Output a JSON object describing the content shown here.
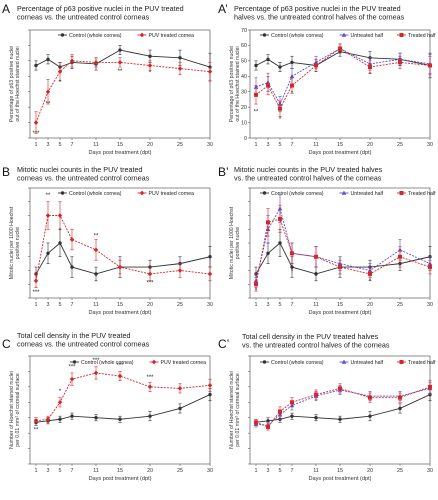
{
  "chart_data": [
    {
      "id": "A",
      "type": "line",
      "panel_label": "A",
      "title": [
        "Percentage of p63 positive nuclei in the PUV treated",
        "corneas vs. the untreated control corneas"
      ],
      "xlabel": "Days post treatment (dpt)",
      "ylabel": [
        "Percentage of p63 positive nuclei",
        "out of the Hoechst stained nuclei"
      ],
      "xlim": [
        0,
        30
      ],
      "ylim": [
        0,
        70
      ],
      "xticks": [
        1,
        3,
        5,
        7,
        11,
        15,
        20,
        25,
        30
      ],
      "xtick_labels": [
        "1",
        "3",
        "5",
        "7",
        "11",
        "15",
        "20",
        "25",
        "30"
      ],
      "yticks": [
        0,
        10,
        20,
        30,
        40,
        50,
        60,
        70
      ],
      "ytick_labels": [
        "",
        "",
        "",
        "",
        "",
        "",
        "",
        ""
      ],
      "legend": "top",
      "series": [
        {
          "name": "Control (whole cornea)",
          "color": "#333333",
          "marker": "circle",
          "x": [
            1,
            3,
            5,
            7,
            11,
            15,
            20,
            25,
            30
          ],
          "y": [
            47,
            51,
            46,
            49,
            48,
            57,
            53,
            52,
            46
          ],
          "err": [
            3,
            3,
            3,
            4,
            4,
            3,
            4,
            5,
            9
          ]
        },
        {
          "name": "PUV treated cornea",
          "color": "#d62728",
          "marker": "diamond",
          "x": [
            1,
            3,
            5,
            7,
            11,
            15,
            20,
            25,
            30
          ],
          "y": [
            10,
            30,
            43,
            50,
            49,
            49,
            47,
            45,
            43
          ],
          "err": [
            7,
            8,
            6,
            4,
            3,
            3,
            3,
            4,
            6
          ]
        }
      ],
      "annotations": [
        {
          "text": "***",
          "x": 1,
          "y": 2
        },
        {
          "text": "**",
          "x": 3,
          "y": 21
        },
        {
          "text": "*",
          "x": 5,
          "y": 35
        },
        {
          "text": "**",
          "x": 15,
          "y": 42
        },
        {
          "text": "*",
          "x": 20,
          "y": 41
        }
      ]
    },
    {
      "id": "A2",
      "type": "line",
      "panel_label": "A’",
      "title": [
        "Percentage of p63 positive nuclei in the PUV treated",
        "halves vs. the untreated control halves of the corneas"
      ],
      "xlabel": "Days post treatment (dpt)",
      "ylabel": [
        "Percentage of p63 positive nuclei",
        "out of the Hoechst stained nuclei"
      ],
      "xlim": [
        0,
        30
      ],
      "ylim": [
        0,
        70
      ],
      "xticks": [
        1,
        3,
        5,
        7,
        11,
        15,
        20,
        25,
        30
      ],
      "xtick_labels": [
        "1",
        "3",
        "5",
        "7",
        "11",
        "15",
        "20",
        "25",
        "30"
      ],
      "yticks": [
        0,
        10,
        20,
        30,
        40,
        50,
        60,
        70
      ],
      "ytick_labels": [
        "0",
        "10",
        "20",
        "30",
        "40",
        "50",
        "60",
        "70"
      ],
      "legend": "top",
      "series": [
        {
          "name": "Control (whole cornea)",
          "color": "#333333",
          "marker": "circle",
          "x": [
            1,
            3,
            5,
            7,
            11,
            15,
            20,
            25,
            30
          ],
          "y": [
            47,
            51,
            46,
            49,
            47,
            56,
            52,
            51,
            47
          ],
          "err": [
            3,
            3,
            3,
            4,
            4,
            3,
            4,
            4,
            8
          ]
        },
        {
          "name": "Untreated half",
          "color": "#5a4fcf",
          "marker": "triangle",
          "x": [
            1,
            3,
            5,
            7,
            11,
            15,
            20,
            25,
            30
          ],
          "y": [
            33,
            36,
            22,
            40,
            49,
            58,
            48,
            51,
            48
          ],
          "err": [
            6,
            6,
            5,
            5,
            4,
            3,
            4,
            4,
            6
          ]
        },
        {
          "name": "Treated half",
          "color": "#d62728",
          "marker": "square",
          "x": [
            1,
            3,
            5,
            7,
            11,
            15,
            20,
            25,
            30
          ],
          "y": [
            28,
            34,
            19,
            34,
            47,
            58,
            46,
            49,
            47
          ],
          "err": [
            6,
            6,
            5,
            5,
            4,
            3,
            4,
            4,
            6
          ]
        }
      ],
      "annotations": [
        {
          "text": "**",
          "x": 1,
          "y": 16
        },
        {
          "text": "*",
          "x": 5,
          "y": 11
        },
        {
          "text": "*",
          "x": 7,
          "y": 28
        },
        {
          "text": "*",
          "x": 20,
          "y": 40
        }
      ]
    },
    {
      "id": "B",
      "type": "line",
      "panel_label": "B",
      "title": [
        "Mitotic nuclei counts in the PUV treated",
        "corneas vs. the untreated control corneas"
      ],
      "xlabel": "Days post treatment (dpt)",
      "ylabel": [
        "Mitotic nuclei per 1000 Hoechst",
        "positive nuclei"
      ],
      "xlim": [
        0,
        30
      ],
      "ylim": [
        0,
        16
      ],
      "xticks": [
        1,
        3,
        5,
        7,
        11,
        15,
        20,
        25,
        30
      ],
      "xtick_labels": [
        "1",
        "3",
        "5",
        "7",
        "11",
        "15",
        "20",
        "25",
        "30"
      ],
      "yticks": [
        0,
        2,
        4,
        6,
        8,
        10,
        12,
        14,
        16
      ],
      "ytick_labels": [
        "",
        "",
        "",
        "",
        "",
        "",
        "",
        "",
        ""
      ],
      "legend": "top",
      "series": [
        {
          "name": "Control (whole cornea)",
          "color": "#333333",
          "marker": "circle",
          "x": [
            1,
            3,
            5,
            7,
            11,
            15,
            20,
            25,
            30
          ],
          "y": [
            3.5,
            6.5,
            8,
            4.5,
            3.5,
            4.5,
            4.5,
            5,
            6
          ],
          "err": [
            1,
            1.5,
            2,
            1.5,
            1,
            1.5,
            1,
            1,
            1.5
          ]
        },
        {
          "name": "PUV treated cornea",
          "color": "#d62728",
          "marker": "diamond",
          "x": [
            1,
            3,
            5,
            7,
            11,
            15,
            20,
            25,
            30
          ],
          "y": [
            2.5,
            12,
            12,
            8.5,
            7,
            4.5,
            3.5,
            4,
            3.5
          ],
          "err": [
            1,
            2,
            2,
            1.5,
            1.5,
            1,
            1,
            1,
            1
          ]
        }
      ],
      "annotations": [
        {
          "text": "***",
          "x": 1,
          "y": 0.6
        },
        {
          "text": "**",
          "x": 3,
          "y": 14.7
        },
        {
          "text": "*",
          "x": 5,
          "y": 9.5
        },
        {
          "text": "**",
          "x": 11,
          "y": 8.8
        },
        {
          "text": "***",
          "x": 20,
          "y": 2
        }
      ]
    },
    {
      "id": "B2",
      "type": "line",
      "panel_label": "B’",
      "title": [
        "Mitotic nuclei counts in the PUV treated halves",
        "vs. the untreated control halves of the corneas"
      ],
      "xlabel": "Days post treatment (dpt)",
      "ylabel": [
        "Mitotic nuclei per 1000 Hoechst",
        "positive nuclei"
      ],
      "xlim": [
        0,
        30
      ],
      "ylim": [
        0,
        16
      ],
      "xticks": [
        1,
        3,
        5,
        7,
        11,
        15,
        20,
        25,
        30
      ],
      "xtick_labels": [
        "1",
        "3",
        "5",
        "7",
        "11",
        "15",
        "20",
        "25",
        "30"
      ],
      "yticks": [
        0,
        2,
        4,
        6,
        8,
        10,
        12,
        14,
        16
      ],
      "ytick_labels": [
        "",
        "",
        "",
        "",
        "",
        "",
        "",
        "",
        ""
      ],
      "legend": "top",
      "series": [
        {
          "name": "Control (whole cornea)",
          "color": "#333333",
          "marker": "circle",
          "x": [
            1,
            3,
            5,
            7,
            11,
            15,
            20,
            25,
            30
          ],
          "y": [
            3.5,
            6.5,
            8,
            4.5,
            3.5,
            4.5,
            4.5,
            5,
            6
          ],
          "err": [
            1,
            1.5,
            2,
            1.5,
            1,
            1.5,
            1,
            1,
            1.5
          ]
        },
        {
          "name": "Untreated half",
          "color": "#5a4fcf",
          "marker": "triangle",
          "x": [
            1,
            3,
            5,
            7,
            11,
            15,
            20,
            25,
            30
          ],
          "y": [
            2.5,
            10,
            13,
            6.5,
            6,
            5,
            4,
            7,
            5
          ],
          "err": [
            1,
            2,
            2,
            1.5,
            1.5,
            1,
            1,
            1.5,
            1
          ]
        },
        {
          "name": "Treated half",
          "color": "#d62728",
          "marker": "square",
          "x": [
            1,
            3,
            5,
            7,
            11,
            15,
            20,
            25,
            30
          ],
          "y": [
            2,
            11,
            11.5,
            6.5,
            6,
            4.5,
            3.5,
            6,
            4.5
          ],
          "err": [
            1,
            2,
            2,
            1.5,
            1.5,
            1,
            1,
            1.5,
            1
          ]
        }
      ],
      "annotations": [
        {
          "text": "*",
          "x": 1,
          "y": 0.8
        },
        {
          "text": "*",
          "x": 7,
          "y": 3.6
        },
        {
          "text": "*",
          "x": 11,
          "y": 3.2
        },
        {
          "text": "*",
          "x": 20,
          "y": 2.2
        }
      ]
    },
    {
      "id": "C",
      "type": "line",
      "panel_label": "C",
      "title": [
        "Total cell density in the PUV treated",
        "corneas vs. the untreated control corneas"
      ],
      "xlabel": "Days post treatment (dpt)",
      "ylabel": [
        "Number of Hoechst stained nuclei",
        "per 0.01 mm² of corneal surface"
      ],
      "xlim": [
        0,
        30
      ],
      "ylim": [
        0,
        70
      ],
      "xticks": [
        1,
        3,
        5,
        7,
        11,
        15,
        20,
        25,
        30
      ],
      "xtick_labels": [
        "1",
        "3",
        "5",
        "7",
        "11",
        "15",
        "20",
        "25",
        "30"
      ],
      "yticks": [
        0,
        10,
        20,
        30,
        40,
        50,
        60,
        70
      ],
      "ytick_labels": [
        "",
        "",
        "",
        "",
        "",
        "",
        "",
        ""
      ],
      "legend": "top",
      "series": [
        {
          "name": "Control (whole cornea)",
          "color": "#333333",
          "marker": "circle",
          "x": [
            1,
            3,
            5,
            7,
            11,
            15,
            20,
            25,
            30
          ],
          "y": [
            27,
            28,
            29,
            31,
            30,
            29,
            31,
            36,
            45
          ],
          "err": [
            2,
            2,
            2,
            2,
            2,
            2,
            3,
            3,
            4
          ]
        },
        {
          "name": "PUV treated cornea",
          "color": "#d62728",
          "marker": "diamond",
          "x": [
            1,
            3,
            5,
            7,
            11,
            15,
            20,
            25,
            30
          ],
          "y": [
            28,
            29,
            40,
            55,
            59,
            57,
            50,
            49,
            51
          ],
          "err": [
            2,
            2,
            3,
            4,
            4,
            3,
            3,
            3,
            4
          ]
        }
      ],
      "annotations": [
        {
          "text": "**",
          "x": 1,
          "y": 21
        },
        {
          "text": "*",
          "x": 5,
          "y": 46
        },
        {
          "text": "***",
          "x": 7,
          "y": 62
        },
        {
          "text": "***",
          "x": 11,
          "y": 66
        },
        {
          "text": "***",
          "x": 15,
          "y": 63
        },
        {
          "text": "***",
          "x": 20,
          "y": 55
        }
      ]
    },
    {
      "id": "C2",
      "type": "line",
      "panel_label": "C’",
      "title": [
        "Total cell density in the PUV treated halves",
        "vs. the untreated control halves of the corneas"
      ],
      "xlabel": "Days post treatment (dpt)",
      "ylabel": [
        "Number of Hoechst stained nuclei",
        "per 0.01 mm² of corneal surface"
      ],
      "xlim": [
        0,
        30
      ],
      "ylim": [
        0,
        70
      ],
      "xticks": [
        1,
        3,
        5,
        7,
        11,
        15,
        20,
        25,
        30
      ],
      "xtick_labels": [
        "1",
        "3",
        "5",
        "7",
        "11",
        "15",
        "20",
        "25",
        "30"
      ],
      "yticks": [
        0,
        10,
        20,
        30,
        40,
        50,
        60,
        70
      ],
      "ytick_labels": [
        "",
        "",
        "",
        "",
        "",
        "",
        "",
        ""
      ],
      "legend": "top",
      "series": [
        {
          "name": "Control (whole cornea)",
          "color": "#333333",
          "marker": "circle",
          "x": [
            1,
            3,
            5,
            7,
            11,
            15,
            20,
            25,
            30
          ],
          "y": [
            27,
            28,
            29,
            31,
            30,
            29,
            31,
            36,
            45
          ],
          "err": [
            2,
            2,
            2,
            2,
            2,
            2,
            3,
            3,
            4
          ]
        },
        {
          "name": "Untreated half",
          "color": "#5a4fcf",
          "marker": "triangle",
          "x": [
            1,
            3,
            5,
            7,
            11,
            15,
            20,
            25,
            30
          ],
          "y": [
            26,
            25,
            32,
            38,
            44,
            48,
            44,
            44,
            49
          ],
          "err": [
            2,
            2,
            3,
            3,
            3,
            3,
            3,
            3,
            4
          ]
        },
        {
          "name": "Treated half",
          "color": "#d62728",
          "marker": "square",
          "x": [
            1,
            3,
            5,
            7,
            11,
            15,
            20,
            25,
            30
          ],
          "y": [
            27,
            24,
            34,
            40,
            45,
            49,
            43,
            43,
            50
          ],
          "err": [
            2,
            2,
            3,
            3,
            3,
            3,
            3,
            3,
            4
          ]
        }
      ],
      "annotations": []
    }
  ]
}
